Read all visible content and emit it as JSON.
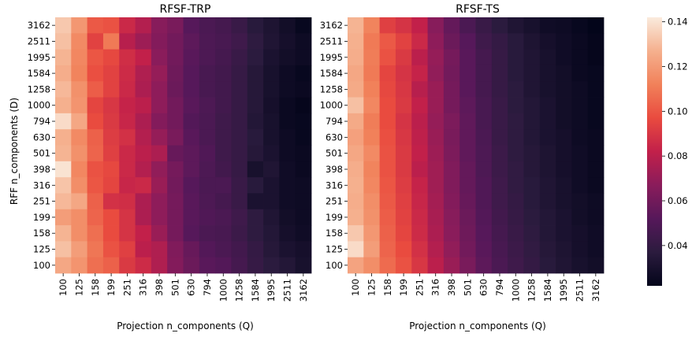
{
  "chart_data": {
    "type": "heatmap",
    "colormap": "rocket",
    "colorbar": {
      "vmin": 0.022,
      "vmax": 0.142,
      "ticks": [
        0.04,
        0.06,
        0.08,
        0.1,
        0.12,
        0.14
      ],
      "tick_labels": [
        "0.04",
        "0.06",
        "0.08",
        "0.10",
        "0.12",
        "0.14"
      ]
    },
    "y_ticks": [
      "3162",
      "2511",
      "1995",
      "1584",
      "1258",
      "1000",
      "794",
      "630",
      "501",
      "398",
      "316",
      "251",
      "199",
      "158",
      "125",
      "100"
    ],
    "x_ticks": [
      "100",
      "125",
      "158",
      "199",
      "251",
      "316",
      "398",
      "501",
      "630",
      "794",
      "1000",
      "1258",
      "1584",
      "1995",
      "2511",
      "3162"
    ],
    "panels": [
      {
        "title": "RFSF-TRP",
        "xlabel": "Projection n_components (Q)",
        "ylabel": "RFF n_components (D)",
        "values": [
          [
            0.133,
            0.119,
            0.101,
            0.099,
            0.085,
            0.078,
            0.066,
            0.062,
            0.052,
            0.048,
            0.046,
            0.042,
            0.036,
            0.032,
            0.028,
            0.024
          ],
          [
            0.131,
            0.115,
            0.094,
            0.11,
            0.079,
            0.072,
            0.065,
            0.06,
            0.054,
            0.049,
            0.047,
            0.044,
            0.038,
            0.033,
            0.029,
            0.026
          ],
          [
            0.128,
            0.114,
            0.1,
            0.096,
            0.087,
            0.082,
            0.067,
            0.06,
            0.053,
            0.049,
            0.046,
            0.042,
            0.037,
            0.031,
            0.028,
            0.026
          ],
          [
            0.126,
            0.113,
            0.098,
            0.094,
            0.086,
            0.077,
            0.07,
            0.059,
            0.052,
            0.047,
            0.045,
            0.041,
            0.035,
            0.03,
            0.026,
            0.024
          ],
          [
            0.129,
            0.117,
            0.102,
            0.094,
            0.085,
            0.076,
            0.068,
            0.058,
            0.052,
            0.047,
            0.045,
            0.041,
            0.035,
            0.03,
            0.026,
            0.025
          ],
          [
            0.127,
            0.118,
            0.095,
            0.09,
            0.083,
            0.08,
            0.068,
            0.06,
            0.053,
            0.049,
            0.045,
            0.041,
            0.035,
            0.029,
            0.025,
            0.023
          ],
          [
            0.138,
            0.124,
            0.097,
            0.091,
            0.084,
            0.076,
            0.065,
            0.06,
            0.051,
            0.048,
            0.044,
            0.041,
            0.034,
            0.03,
            0.025,
            0.024
          ],
          [
            0.127,
            0.115,
            0.103,
            0.092,
            0.088,
            0.078,
            0.07,
            0.062,
            0.053,
            0.048,
            0.044,
            0.041,
            0.036,
            0.03,
            0.026,
            0.024
          ],
          [
            0.128,
            0.117,
            0.104,
            0.093,
            0.085,
            0.08,
            0.076,
            0.057,
            0.054,
            0.05,
            0.044,
            0.041,
            0.035,
            0.031,
            0.026,
            0.025
          ],
          [
            0.14,
            0.114,
            0.099,
            0.096,
            0.085,
            0.078,
            0.069,
            0.061,
            0.054,
            0.049,
            0.045,
            0.041,
            0.03,
            0.033,
            0.027,
            0.025
          ],
          [
            0.132,
            0.116,
            0.1,
            0.095,
            0.084,
            0.085,
            0.071,
            0.06,
            0.052,
            0.048,
            0.048,
            0.042,
            0.036,
            0.031,
            0.027,
            0.026
          ],
          [
            0.129,
            0.124,
            0.103,
            0.088,
            0.087,
            0.076,
            0.068,
            0.061,
            0.053,
            0.049,
            0.046,
            0.042,
            0.031,
            0.031,
            0.027,
            0.026
          ],
          [
            0.121,
            0.116,
            0.104,
            0.097,
            0.089,
            0.076,
            0.068,
            0.061,
            0.053,
            0.05,
            0.048,
            0.044,
            0.038,
            0.033,
            0.028,
            0.026
          ],
          [
            0.128,
            0.116,
            0.107,
            0.097,
            0.089,
            0.082,
            0.071,
            0.061,
            0.052,
            0.048,
            0.047,
            0.043,
            0.038,
            0.034,
            0.029,
            0.027
          ],
          [
            0.131,
            0.121,
            0.109,
            0.099,
            0.093,
            0.08,
            0.077,
            0.064,
            0.057,
            0.051,
            0.048,
            0.045,
            0.04,
            0.035,
            0.031,
            0.029
          ],
          [
            0.124,
            0.118,
            0.107,
            0.103,
            0.091,
            0.086,
            0.077,
            0.065,
            0.058,
            0.053,
            0.051,
            0.046,
            0.041,
            0.037,
            0.034,
            0.03
          ]
        ]
      },
      {
        "title": "RFSF-TS",
        "xlabel": "Projection n_components (Q)",
        "ylabel": "",
        "values": [
          [
            0.128,
            0.113,
            0.093,
            0.089,
            0.082,
            0.066,
            0.056,
            0.048,
            0.042,
            0.037,
            0.033,
            0.03,
            0.027,
            0.026,
            0.024,
            0.022
          ],
          [
            0.127,
            0.11,
            0.101,
            0.094,
            0.085,
            0.068,
            0.058,
            0.052,
            0.044,
            0.04,
            0.036,
            0.032,
            0.029,
            0.027,
            0.025,
            0.023
          ],
          [
            0.126,
            0.111,
            0.099,
            0.091,
            0.08,
            0.07,
            0.061,
            0.053,
            0.046,
            0.041,
            0.036,
            0.033,
            0.03,
            0.027,
            0.025,
            0.023
          ],
          [
            0.124,
            0.11,
            0.095,
            0.089,
            0.083,
            0.069,
            0.06,
            0.053,
            0.046,
            0.041,
            0.036,
            0.033,
            0.03,
            0.028,
            0.025,
            0.024
          ],
          [
            0.125,
            0.112,
            0.096,
            0.09,
            0.079,
            0.071,
            0.061,
            0.053,
            0.046,
            0.041,
            0.037,
            0.033,
            0.03,
            0.028,
            0.026,
            0.024
          ],
          [
            0.131,
            0.114,
            0.097,
            0.091,
            0.082,
            0.071,
            0.061,
            0.054,
            0.047,
            0.042,
            0.037,
            0.034,
            0.031,
            0.028,
            0.026,
            0.024
          ],
          [
            0.125,
            0.111,
            0.097,
            0.089,
            0.08,
            0.07,
            0.063,
            0.055,
            0.047,
            0.042,
            0.038,
            0.034,
            0.031,
            0.028,
            0.026,
            0.024
          ],
          [
            0.122,
            0.112,
            0.098,
            0.09,
            0.081,
            0.071,
            0.062,
            0.055,
            0.048,
            0.042,
            0.038,
            0.034,
            0.031,
            0.029,
            0.026,
            0.025
          ],
          [
            0.124,
            0.115,
            0.099,
            0.091,
            0.082,
            0.072,
            0.063,
            0.055,
            0.049,
            0.043,
            0.038,
            0.035,
            0.032,
            0.029,
            0.027,
            0.025
          ],
          [
            0.126,
            0.113,
            0.099,
            0.091,
            0.08,
            0.073,
            0.064,
            0.056,
            0.049,
            0.043,
            0.039,
            0.035,
            0.032,
            0.029,
            0.027,
            0.025
          ],
          [
            0.127,
            0.114,
            0.1,
            0.092,
            0.083,
            0.073,
            0.064,
            0.056,
            0.05,
            0.044,
            0.039,
            0.036,
            0.033,
            0.03,
            0.027,
            0.025
          ],
          [
            0.126,
            0.116,
            0.101,
            0.093,
            0.084,
            0.074,
            0.065,
            0.057,
            0.05,
            0.044,
            0.04,
            0.036,
            0.033,
            0.03,
            0.028,
            0.026
          ],
          [
            0.127,
            0.117,
            0.102,
            0.094,
            0.085,
            0.075,
            0.066,
            0.058,
            0.051,
            0.045,
            0.041,
            0.037,
            0.034,
            0.031,
            0.028,
            0.026
          ],
          [
            0.133,
            0.119,
            0.103,
            0.095,
            0.086,
            0.076,
            0.067,
            0.059,
            0.052,
            0.046,
            0.042,
            0.038,
            0.034,
            0.031,
            0.029,
            0.027
          ],
          [
            0.138,
            0.121,
            0.104,
            0.097,
            0.088,
            0.078,
            0.069,
            0.06,
            0.053,
            0.047,
            0.043,
            0.039,
            0.035,
            0.032,
            0.029,
            0.027
          ],
          [
            0.123,
            0.116,
            0.106,
            0.099,
            0.09,
            0.08,
            0.071,
            0.062,
            0.054,
            0.048,
            0.044,
            0.04,
            0.036,
            0.033,
            0.03,
            0.028
          ]
        ]
      }
    ]
  }
}
